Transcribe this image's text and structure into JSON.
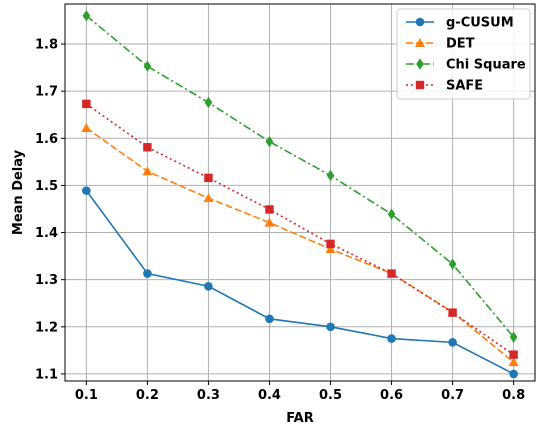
{
  "chart_data": {
    "type": "line",
    "title": "",
    "xlabel": "FAR",
    "ylabel": "Mean Delay",
    "x": [
      0.1,
      0.2,
      0.3,
      0.4,
      0.5,
      0.6,
      0.7,
      0.8
    ],
    "x_ticks": [
      "0.1",
      "0.2",
      "0.3",
      "0.4",
      "0.5",
      "0.6",
      "0.7",
      "0.8"
    ],
    "y_ticks": [
      "1.1",
      "1.2",
      "1.3",
      "1.4",
      "1.5",
      "1.6",
      "1.7",
      "1.8"
    ],
    "xlim": [
      0.065,
      0.835
    ],
    "ylim": [
      1.085,
      1.885
    ],
    "grid": true,
    "legend": "top-right",
    "series": [
      {
        "name": "g-CUSUM",
        "color": "#1f77b4",
        "dash": "solid",
        "marker": "circle",
        "values": [
          1.489,
          1.313,
          1.286,
          1.217,
          1.2,
          1.175,
          1.167,
          1.1
        ]
      },
      {
        "name": "DET",
        "color": "#ff7f0e",
        "dash": "dashed",
        "marker": "triangle",
        "values": [
          1.622,
          1.53,
          1.473,
          1.421,
          1.365,
          1.313,
          1.231,
          1.125
        ]
      },
      {
        "name": "Chi Square",
        "color": "#2ca02c",
        "dash": "dashdot",
        "marker": "diamond",
        "values": [
          1.86,
          1.753,
          1.676,
          1.593,
          1.521,
          1.439,
          1.333,
          1.178
        ]
      },
      {
        "name": "SAFE",
        "color": "#d62728",
        "dash": "dotted",
        "marker": "square",
        "values": [
          1.673,
          1.581,
          1.516,
          1.449,
          1.376,
          1.313,
          1.23,
          1.141
        ]
      }
    ]
  }
}
